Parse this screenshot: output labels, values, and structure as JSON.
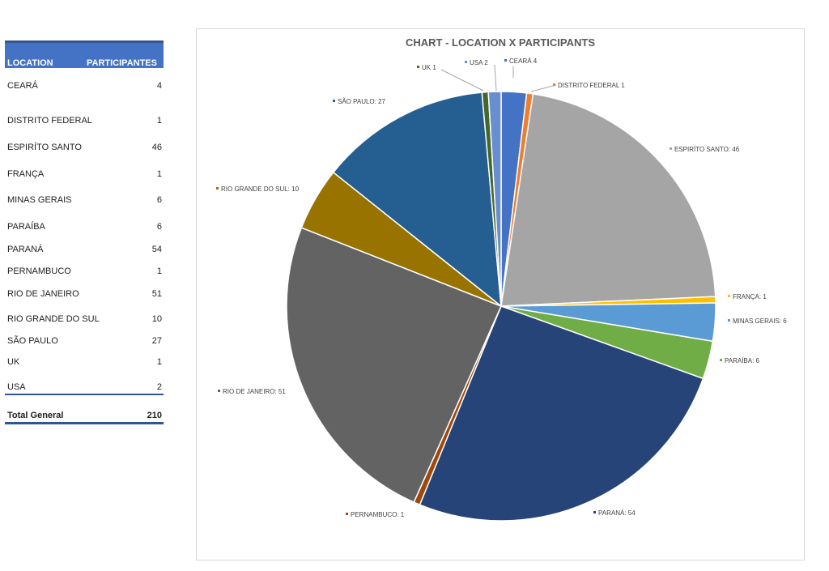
{
  "table": {
    "header_location": "LOCATION",
    "header_participants": "PARTICIPANTES",
    "rows": [
      {
        "location": "CEARÁ",
        "participants": "4"
      },
      {
        "location": "DISTRITO FEDERAL",
        "participants": "1"
      },
      {
        "location": "ESPIRÍTO SANTO",
        "participants": "46"
      },
      {
        "location": "FRANÇA",
        "participants": "1"
      },
      {
        "location": "MINAS GERAIS",
        "participants": "6"
      },
      {
        "location": "PARAÍBA",
        "participants": "6"
      },
      {
        "location": "PARANÁ",
        "participants": "54"
      },
      {
        "location": "PERNAMBUCO",
        "participants": "1"
      },
      {
        "location": "RIO DE JANEIRO",
        "participants": "51"
      },
      {
        "location": "RIO GRANDE DO SUL",
        "participants": "10"
      },
      {
        "location": "SÃO PAULO",
        "participants": "27"
      },
      {
        "location": "UK",
        "participants": "1"
      },
      {
        "location": "USA",
        "participants": "2"
      }
    ],
    "total_label": "Total General",
    "total_value": "210"
  },
  "chart_data": {
    "type": "pie",
    "title": "CHART - LOCATION X PARTICIPANTS",
    "categories": [
      "CEARÁ",
      "DISTRITO FEDERAL",
      "ESPIRÍTO SANTO",
      "FRANÇA",
      "MINAS GERAIS",
      "PARAÍBA",
      "PARANÁ",
      "PERNAMBUCO",
      "RIO DE JANEIRO",
      "RIO GRANDE DO SUL",
      "SÃO PAULO",
      "UK",
      "USA"
    ],
    "values": [
      4,
      1,
      46,
      1,
      6,
      6,
      54,
      1,
      51,
      10,
      27,
      1,
      2
    ],
    "colors": [
      "#4472c4",
      "#ed7d31",
      "#a5a5a5",
      "#ffc000",
      "#5b9bd5",
      "#70ad47",
      "#264478",
      "#9e480e",
      "#636363",
      "#997300",
      "#255e91",
      "#43682b",
      "#698ed0"
    ],
    "data_labels": [
      "CEARÁ 4",
      "DISTRITO FEDERAL 1",
      "ESPIRÍTO SANTO: 46",
      "FRANÇA: 1",
      "MINAS GERAIS: 6",
      "PARAÍBA: 6",
      "PARANÁ: 54",
      "PERNAMBUCO: 1",
      "RIO DE JANEIRO: 51",
      "RIO GRANDE DO SUL: 10",
      "SÃO PAULO: 27",
      "UK 1",
      "USA 2"
    ]
  }
}
